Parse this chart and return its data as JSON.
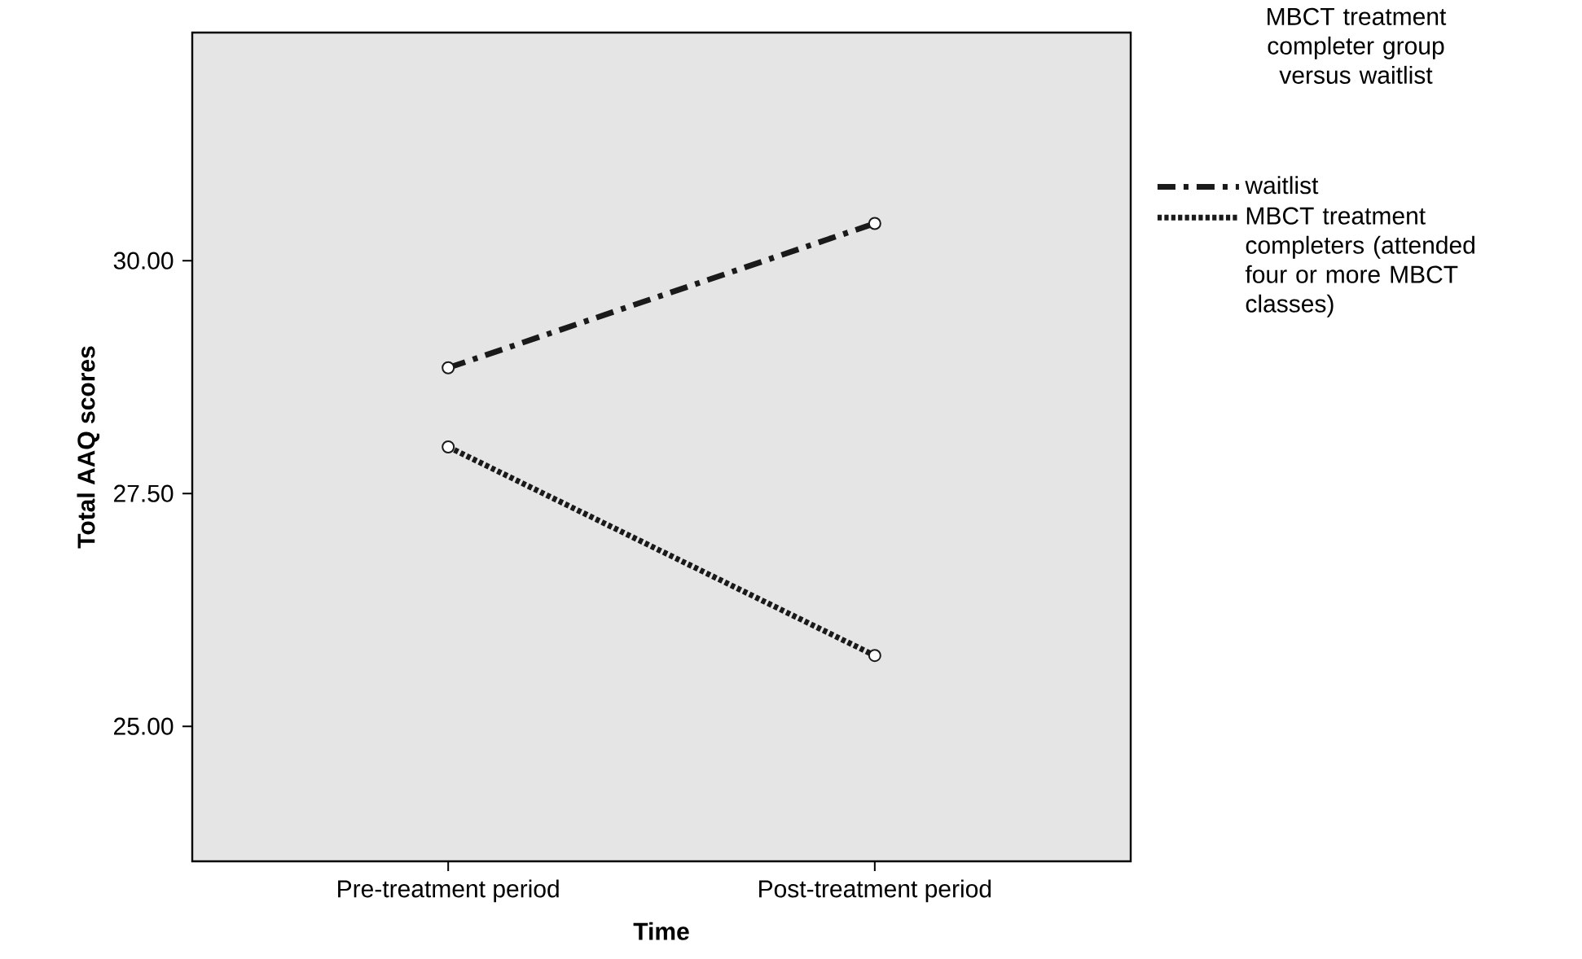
{
  "chart_data": {
    "type": "line",
    "xlabel": "Time",
    "ylabel": "Total AAQ scores",
    "legend_title": "MBCT treatment completer group versus waitlist",
    "categories": [
      "Pre-treatment period",
      "Post-treatment period"
    ],
    "series": [
      {
        "name": "waitlist",
        "color": "#1a1a1a",
        "line_style": "dashdot",
        "values": [
          28.85,
          30.4
        ]
      },
      {
        "name": "MBCT treatment completers (attended four or more MBCT classes)",
        "color": "#1a1a1a",
        "line_style": "dotted",
        "values": [
          28.0,
          25.76
        ]
      }
    ],
    "ylim": [
      23.55,
      32.45
    ],
    "yticks": [
      {
        "value": 25,
        "label": "25.00"
      },
      {
        "value": 27.5,
        "label": "27.50"
      },
      {
        "value": 30,
        "label": "30.00"
      }
    ],
    "marker": "circle",
    "grid": false,
    "legend": "right"
  }
}
